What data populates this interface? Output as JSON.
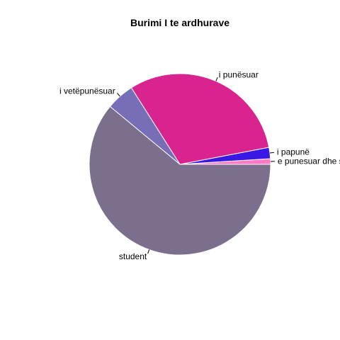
{
  "chart_data": {
    "type": "pie",
    "title": "Burimi I te ardhurave",
    "slices": [
      {
        "label": "e punesuar dhe student",
        "value": 1,
        "color": "#FF79C5"
      },
      {
        "label": "i papunë",
        "value": 2,
        "color": "#3A18E3"
      },
      {
        "label": "i punësuar",
        "value": 31,
        "color": "#D9238F"
      },
      {
        "label": "i vetëpunësuar",
        "value": 5,
        "color": "#786EB8"
      },
      {
        "label": "student",
        "value": 61,
        "color": "#7C6E8D"
      }
    ]
  }
}
